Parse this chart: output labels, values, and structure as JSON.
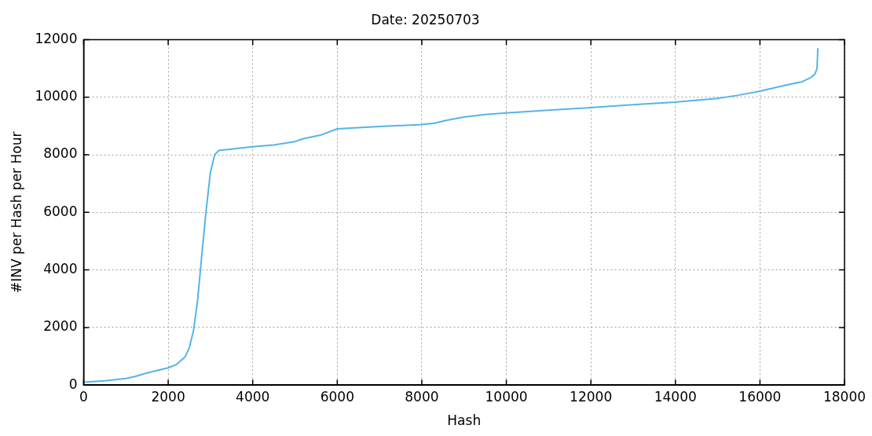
{
  "chart_data": {
    "type": "line",
    "title": "Date: 20250703",
    "xlabel": "Hash",
    "ylabel": "#INV per Hash per Hour",
    "xlim": [
      0,
      18000
    ],
    "xticks": [
      0,
      2000,
      4000,
      6000,
      8000,
      10000,
      12000,
      14000,
      16000,
      18000
    ],
    "ylim": [
      0,
      12000
    ],
    "yticks": [
      0,
      2000,
      4000,
      6000,
      8000,
      10000,
      12000
    ],
    "grid": true,
    "legend": false,
    "marker": "none",
    "line_style": "solid",
    "series": [
      {
        "color": "#56b4e9",
        "x": [
          0,
          500,
          1000,
          1200,
          1500,
          2000,
          2200,
          2400,
          2500,
          2600,
          2700,
          2800,
          2900,
          3000,
          3100,
          3200,
          3500,
          4000,
          4500,
          5000,
          5200,
          5600,
          6000,
          6500,
          7000,
          8000,
          8300,
          8600,
          9000,
          9500,
          10000,
          11000,
          12000,
          13000,
          14000,
          15000,
          15500,
          16000,
          16500,
          17000,
          17200,
          17300,
          17350,
          17370
        ],
        "values": [
          100,
          150,
          230,
          290,
          420,
          600,
          720,
          980,
          1300,
          1900,
          3000,
          4600,
          6100,
          7400,
          8000,
          8150,
          8200,
          8280,
          8340,
          8460,
          8560,
          8680,
          8900,
          8940,
          8980,
          9050,
          9100,
          9200,
          9310,
          9400,
          9450,
          9550,
          9640,
          9740,
          9830,
          9960,
          10070,
          10210,
          10380,
          10540,
          10680,
          10800,
          11000,
          11700
        ]
      }
    ]
  }
}
